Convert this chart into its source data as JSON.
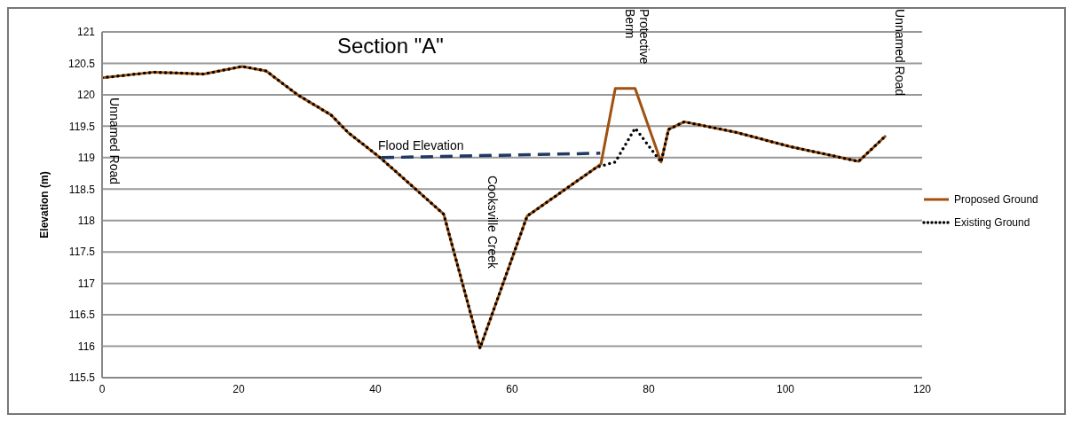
{
  "chart_data": {
    "type": "line",
    "title": "Section \"A\"",
    "ylabel": "Elevation (m)",
    "xlim": [
      0,
      120
    ],
    "xticks": [
      0,
      20,
      40,
      60,
      80,
      100,
      120
    ],
    "ylim": [
      115.5,
      121
    ],
    "yticks": [
      115.5,
      116,
      116.5,
      117,
      117.5,
      118,
      118.5,
      119,
      119.5,
      120,
      120.5,
      121
    ],
    "grid": "y",
    "legend": "right",
    "marker": "none",
    "series": [
      {
        "name": "Proposed Ground",
        "color": "#a0510f",
        "line_style": "solid",
        "x": [
          0,
          7.6,
          14.9,
          20.5,
          24,
          28.6,
          33.5,
          36,
          40.7,
          50,
          55.3,
          62.2,
          72.4,
          73,
          75.1,
          78,
          81.8,
          82.9,
          85.2,
          92.9,
          100.5,
          110.7,
          114.7
        ],
        "values": [
          120.27,
          120.36,
          120.33,
          120.45,
          120.38,
          120,
          119.68,
          119.4,
          119,
          118.1,
          115.97,
          118.07,
          118.85,
          118.9,
          120.1,
          120.1,
          118.93,
          119.45,
          119.57,
          119.4,
          119.18,
          118.94,
          119.35
        ]
      },
      {
        "name": "Existing Ground",
        "color": "#000000",
        "line_style": "dotted",
        "x": [
          0,
          7.6,
          14.9,
          20.5,
          24,
          28.6,
          33.5,
          36,
          40.7,
          50,
          55.3,
          62.2,
          72.4,
          75.1,
          78,
          81.8,
          82.9,
          85.2,
          92.9,
          100.5,
          110.7,
          114.7
        ],
        "values": [
          120.27,
          120.36,
          120.33,
          120.45,
          120.38,
          120,
          119.68,
          119.4,
          119,
          118.1,
          115.97,
          118.07,
          118.85,
          118.93,
          119.47,
          118.93,
          119.45,
          119.57,
          119.4,
          119.18,
          118.94,
          119.35
        ]
      },
      {
        "color": "#1f3864",
        "line_style": "dashed",
        "x": [
          40.9,
          72.9
        ],
        "values": [
          119,
          119.07
        ]
      }
    ],
    "annotations": [
      "Flood Elevation",
      "Unnamed Road",
      "Cooksville Creek",
      "Protective Berm",
      "Unnamed Road"
    ]
  }
}
